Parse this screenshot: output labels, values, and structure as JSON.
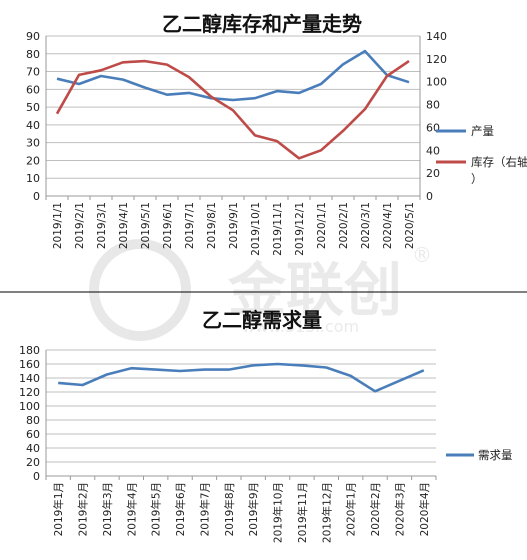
{
  "colors": {
    "production": "#4A7EBB",
    "inventory": "#BE4B48",
    "demand": "#4A7EBB"
  },
  "watermark": {
    "brand": "金联创",
    "registered": "®",
    "url": "www.315i.com"
  },
  "chart_data": [
    {
      "type": "line",
      "title": "乙二醇库存和产量走势",
      "categories": [
        "2019/1/1",
        "2019/2/1",
        "2019/3/1",
        "2019/4/1",
        "2019/5/1",
        "2019/6/1",
        "2019/7/1",
        "2019/8/1",
        "2019/9/1",
        "2019/10/1",
        "2019/11/1",
        "2019/12/1",
        "2020/1/1",
        "2020/2/1",
        "2020/3/1",
        "2020/4/1",
        "2020/5/1"
      ],
      "y_left": {
        "min": 0,
        "max": 90,
        "step": 10,
        "ticks": [
          "0",
          "10",
          "20",
          "30",
          "40",
          "50",
          "60",
          "70",
          "80",
          "90"
        ]
      },
      "y_right": {
        "min": 0,
        "max": 140,
        "step": 20,
        "ticks": [
          "0",
          "20",
          "40",
          "60",
          "80",
          "100",
          "120",
          "140"
        ]
      },
      "grid": true,
      "legend_position": "right",
      "series": [
        {
          "name": "产量",
          "axis": "left",
          "color": "#4A7EBB",
          "values": [
            66,
            63,
            67.5,
            65.5,
            61,
            57,
            58,
            55,
            54,
            55,
            59,
            58,
            63,
            74,
            81.5,
            68,
            64
          ]
        },
        {
          "name": "库存（右轴）",
          "axis": "right",
          "color": "#BE4B48",
          "values": [
            72,
            106,
            110,
            117,
            118,
            115,
            104,
            87,
            75,
            53,
            48,
            33,
            40,
            57,
            76,
            105,
            118
          ]
        }
      ]
    },
    {
      "type": "line",
      "title": "乙二醇需求量",
      "categories": [
        "2019年1月",
        "2019年2月",
        "2019年3月",
        "2019年4月",
        "2019年5月",
        "2019年6月",
        "2019年7月",
        "2019年8月",
        "2019年9月",
        "2019年10月",
        "2019年11月",
        "2019年12月",
        "2020年1月",
        "2020年2月",
        "2020年3月",
        "2020年4月"
      ],
      "y_axis": {
        "min": 0,
        "max": 180,
        "step": 20,
        "ticks": [
          "0",
          "20",
          "40",
          "60",
          "80",
          "100",
          "120",
          "140",
          "160",
          "180"
        ]
      },
      "grid": true,
      "legend_position": "right",
      "series": [
        {
          "name": "需求量",
          "color": "#4A7EBB",
          "values": [
            133,
            130,
            145,
            154,
            152,
            150,
            152,
            152,
            158,
            160,
            158,
            155,
            143,
            121,
            136,
            151
          ]
        }
      ]
    }
  ]
}
